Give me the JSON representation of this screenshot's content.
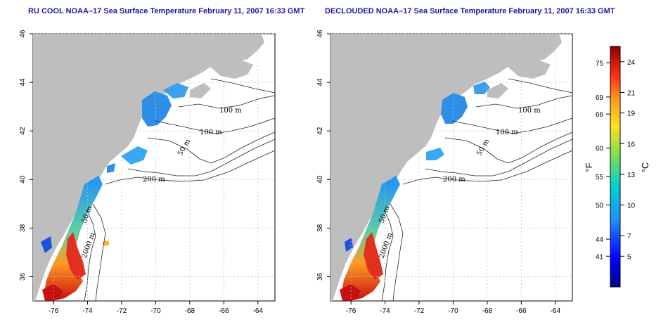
{
  "panels": [
    {
      "title": "RU COOL NOAA–17 Sea Surface Temperature February 11, 2007 16:33 GMT",
      "contour_labels": [
        "100 m",
        "100 m",
        "50 m",
        "200 m",
        "50 m",
        "2000 m"
      ]
    },
    {
      "title": "DECLOUDED NOAA–17 Sea Surface Temperature February 11, 2007 16:33 GMT",
      "contour_labels": [
        "100 m",
        "100 m",
        "50 m",
        "200 m",
        "50 m",
        "2000 m"
      ]
    }
  ],
  "axes": {
    "lon_ticks": [
      "-76",
      "-74",
      "-72",
      "-70",
      "-68",
      "-66",
      "-64"
    ],
    "lat_ticks": [
      "46",
      "44",
      "42",
      "40",
      "38",
      "36"
    ],
    "lon_range": [
      -77.2,
      -63.0
    ],
    "lat_range": [
      35.0,
      46.0
    ]
  },
  "colorbar": {
    "fahrenheit_label": "°F",
    "celsius_label": "°C",
    "fahrenheit_ticks": [
      "75",
      "69",
      "66",
      "60",
      "55",
      "50",
      "44",
      "41"
    ],
    "celsius_ticks": [
      "24",
      "21",
      "19",
      "16",
      "13",
      "10",
      "7",
      "5"
    ],
    "colors": [
      "#8b0000",
      "#e02020",
      "#ff7a1a",
      "#ffd21a",
      "#9be04a",
      "#2fd0c8",
      "#1e90ff",
      "#0000c8"
    ]
  },
  "colors": {
    "land": "#bebebe",
    "ocean": "#ffffff",
    "grid": "#bfbfbf",
    "title": "#1a1aa8"
  }
}
